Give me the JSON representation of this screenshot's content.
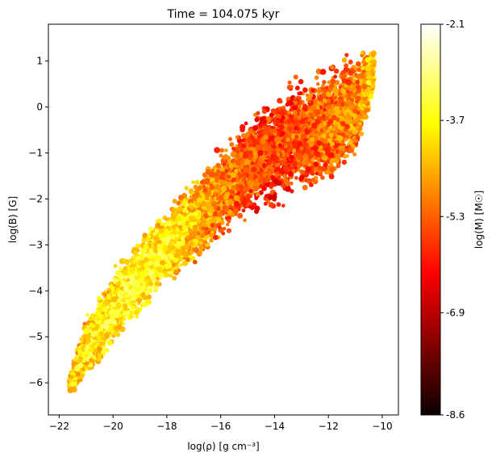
{
  "chart_data": {
    "type": "scatter",
    "title": "Time = 104.075 kyr",
    "xlabel": "log(ρ) [g cm⁻³]",
    "ylabel": "log(B) [G]",
    "xlim": [
      -22.4,
      -9.4
    ],
    "ylim": [
      -6.7,
      1.8
    ],
    "xticks": [
      -22,
      -20,
      -18,
      -16,
      -14,
      -12,
      -10
    ],
    "yticks": [
      -6,
      -5,
      -4,
      -3,
      -2,
      -1,
      0,
      1
    ],
    "xtick_labels": [
      "−22",
      "−20",
      "−18",
      "−16",
      "−14",
      "−12",
      "−10"
    ],
    "ytick_labels": [
      "−6",
      "−5",
      "−4",
      "−3",
      "−2",
      "−1",
      "0",
      "1"
    ],
    "colorbar": {
      "label": "log(M) [M☉]",
      "cmap": "hot",
      "range": [
        -8.6,
        -2.1
      ],
      "ticks": [
        -8.6,
        -6.9,
        -5.3,
        -3.7,
        -2.1
      ],
      "tick_labels": [
        "-8.6",
        "-6.9",
        "-5.3",
        "-3.7",
        "-2.1"
      ]
    },
    "grid": false,
    "ridge": {
      "x": [
        -21.6,
        -21,
        -20,
        -19,
        -18,
        -17,
        -16,
        -15,
        -14,
        -13,
        -12,
        -11,
        -10.3
      ],
      "y_center": [
        -6.0,
        -5.3,
        -4.4,
        -3.7,
        -3.0,
        -2.5,
        -1.9,
        -1.3,
        -0.9,
        -0.6,
        -0.4,
        0.0,
        0.8
      ],
      "y_halfwidth": [
        0.25,
        0.8,
        0.9,
        1.0,
        0.9,
        1.0,
        1.1,
        1.2,
        1.4,
        1.5,
        1.5,
        1.4,
        0.6
      ],
      "logM": [
        -4.0,
        -3.8,
        -3.6,
        -3.4,
        -3.7,
        -4.2,
        -4.8,
        -5.2,
        -5.5,
        -5.3,
        -5.0,
        -4.8,
        -4.0
      ]
    }
  }
}
